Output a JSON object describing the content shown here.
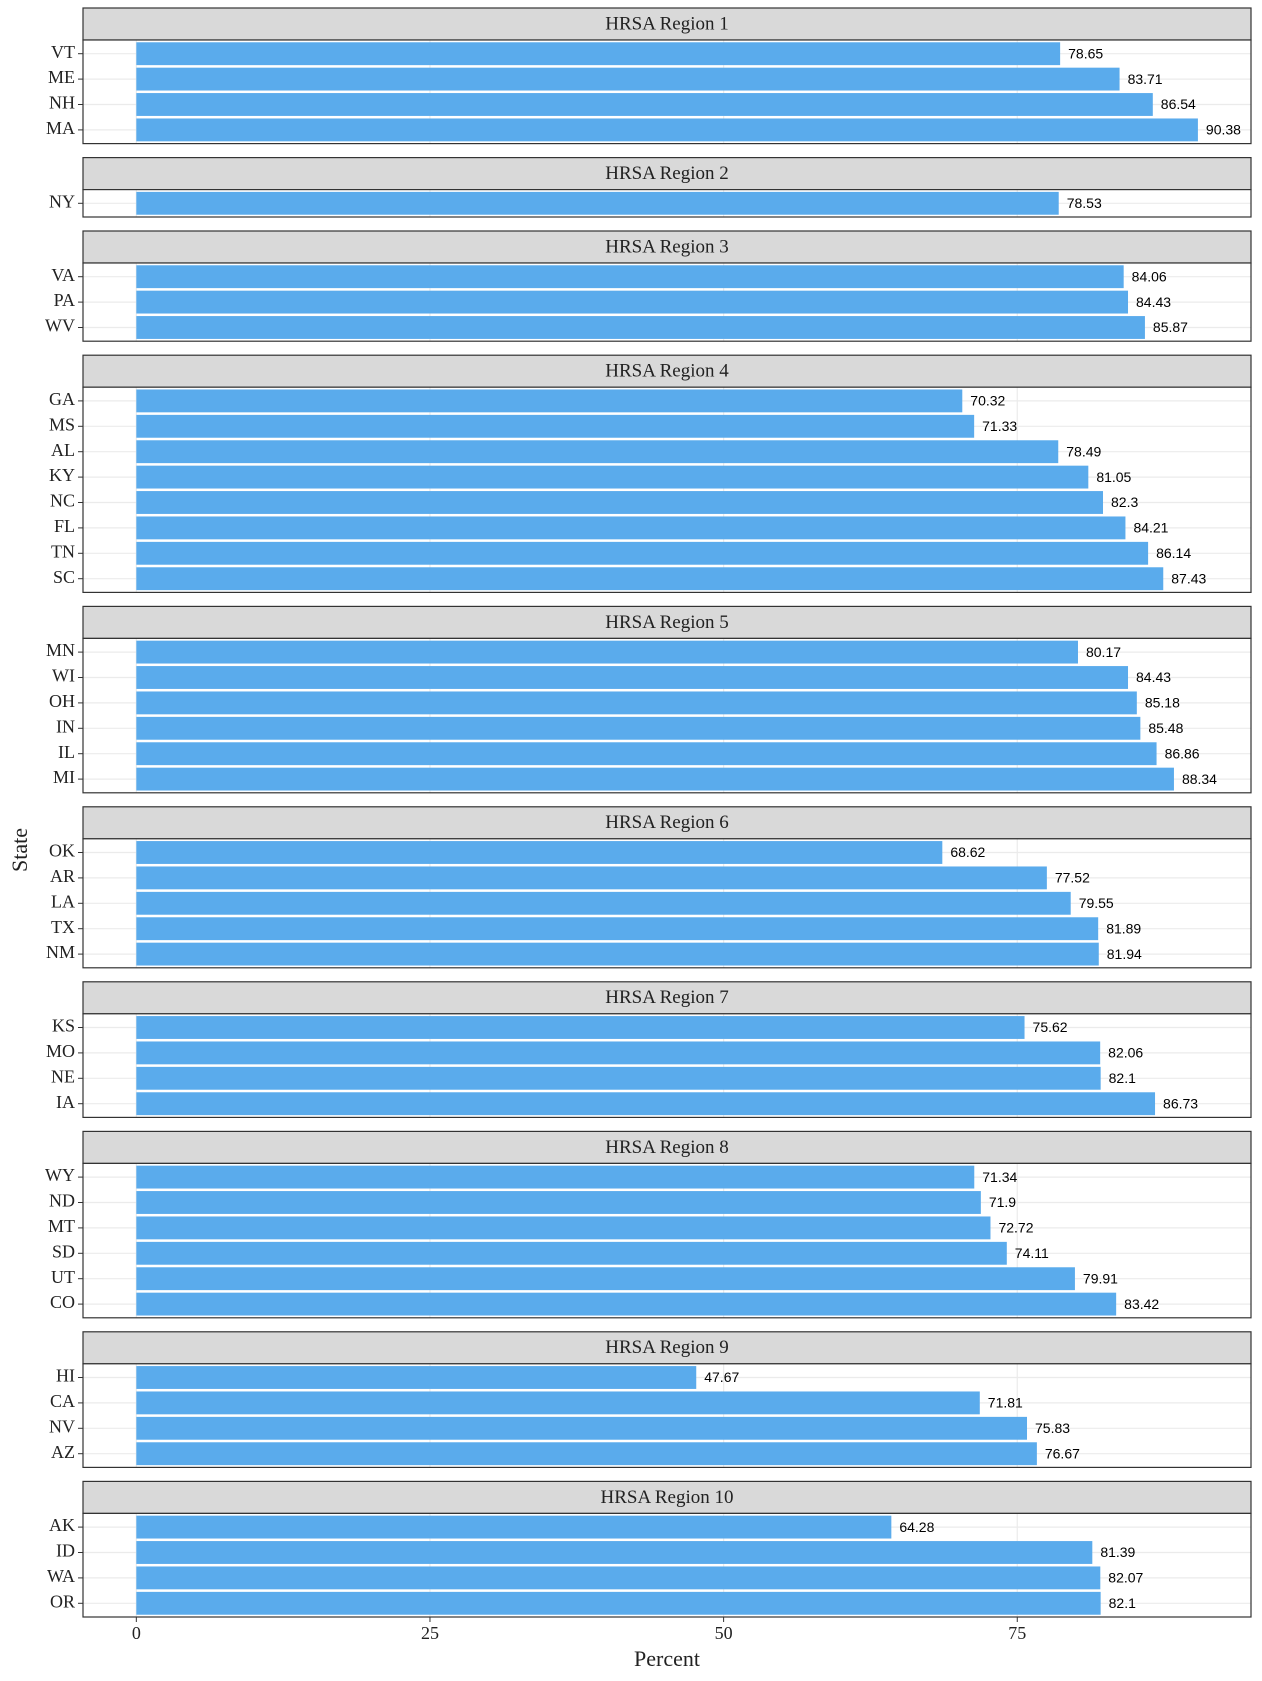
{
  "chart_data": {
    "type": "bar",
    "orientation": "horizontal",
    "xlabel": "Percent",
    "ylabel": "State",
    "color": "#5aabec",
    "xlim": [
      -4.54,
      94.9
    ],
    "xticks": [
      0,
      25,
      50,
      75
    ],
    "grid": true,
    "panels": [
      {
        "title": "HRSA Region 1",
        "categories": [
          "VT",
          "ME",
          "NH",
          "MA"
        ],
        "values": [
          78.65,
          83.71,
          86.54,
          90.38
        ]
      },
      {
        "title": "HRSA Region 2",
        "categories": [
          "NY"
        ],
        "values": [
          78.53
        ]
      },
      {
        "title": "HRSA Region 3",
        "categories": [
          "VA",
          "PA",
          "WV"
        ],
        "values": [
          84.06,
          84.43,
          85.87
        ]
      },
      {
        "title": "HRSA Region 4",
        "categories": [
          "GA",
          "MS",
          "AL",
          "KY",
          "NC",
          "FL",
          "TN",
          "SC"
        ],
        "values": [
          70.32,
          71.33,
          78.49,
          81.05,
          82.3,
          84.21,
          86.14,
          87.43
        ]
      },
      {
        "title": "HRSA Region 5",
        "categories": [
          "MN",
          "WI",
          "OH",
          "IN",
          "IL",
          "MI"
        ],
        "values": [
          80.17,
          84.43,
          85.18,
          85.48,
          86.86,
          88.34
        ]
      },
      {
        "title": "HRSA Region 6",
        "categories": [
          "OK",
          "AR",
          "LA",
          "TX",
          "NM"
        ],
        "values": [
          68.62,
          77.52,
          79.55,
          81.89,
          81.94
        ]
      },
      {
        "title": "HRSA Region 7",
        "categories": [
          "KS",
          "MO",
          "NE",
          "IA"
        ],
        "values": [
          75.62,
          82.06,
          82.1,
          86.73
        ]
      },
      {
        "title": "HRSA Region 8",
        "categories": [
          "WY",
          "ND",
          "MT",
          "SD",
          "UT",
          "CO"
        ],
        "values": [
          71.34,
          71.9,
          72.72,
          74.11,
          79.91,
          83.42
        ]
      },
      {
        "title": "HRSA Region 9",
        "categories": [
          "HI",
          "CA",
          "NV",
          "AZ"
        ],
        "values": [
          47.67,
          71.81,
          75.83,
          76.67
        ]
      },
      {
        "title": "HRSA Region 10",
        "categories": [
          "AK",
          "ID",
          "WA",
          "OR"
        ],
        "values": [
          64.28,
          81.39,
          82.07,
          82.1
        ]
      }
    ]
  }
}
